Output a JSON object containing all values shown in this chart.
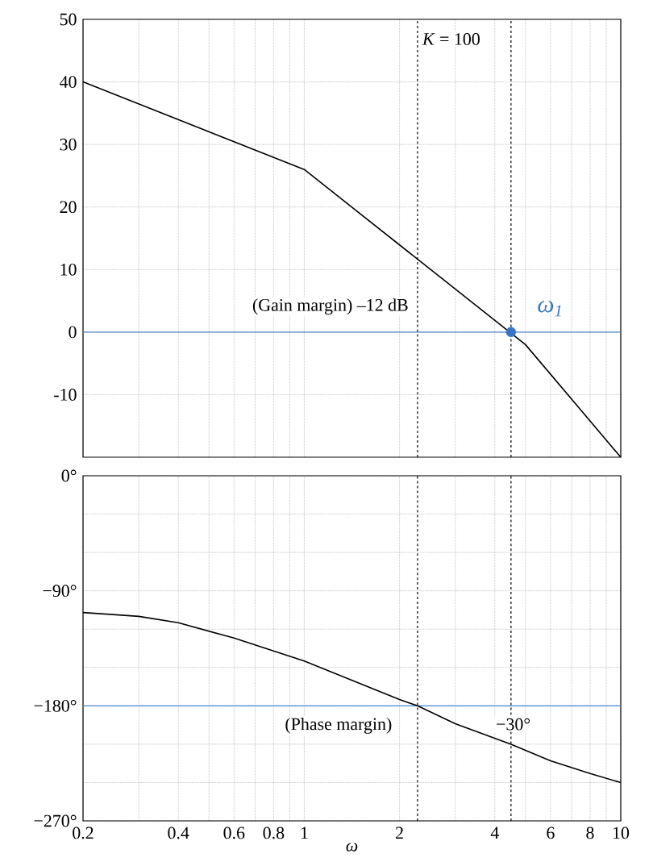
{
  "chart_data": [
    {
      "type": "line",
      "annotations": [
        "*K* = 100",
        "(Gain margin) –12 dB",
        {
          "text": "ω$_{1}$",
          "x": 4.5,
          "y": 0
        }
      ],
      "series": [
        {
          "x": [
            0.2,
            1,
            5,
            10
          ],
          "values": [
            40,
            26,
            -2,
            -20
          ],
          "color": "#000000"
        },
        {
          "type": "scatter",
          "x": [
            4.5
          ],
          "values": [
            0
          ],
          "color": "#3a74c4"
        }
      ],
      "xlim": [
        0.2,
        10
      ],
      "ylim": [
        -20,
        50
      ],
      "xticks": [
        0.2,
        {
          "value": 0.3,
          "label": null
        },
        0.4,
        {
          "value": 0.5,
          "label": null
        },
        0.6,
        {
          "value": 0.7,
          "label": null
        },
        0.8,
        {
          "value": 0.9,
          "label": null
        },
        1,
        2,
        {
          "value": 3,
          "label": null
        },
        4,
        {
          "value": 5,
          "label": null
        },
        6,
        {
          "value": 7,
          "label": null
        },
        8,
        {
          "value": 9,
          "label": null
        },
        10
      ],
      "yticks": [
        -10,
        0,
        10,
        20,
        30,
        40,
        50
      ],
      "log": "x",
      "grid": true,
      "tick_labels": "y",
      "ref_lines": [
        {
          "axis": "y",
          "value": 0,
          "color": "#4a86c8"
        },
        {
          "axis": "x",
          "value": 2.28,
          "line_style": "dashed",
          "color": "#000000"
        },
        {
          "axis": "x",
          "value": 4.5,
          "line_style": "dashed",
          "color": "#000000"
        }
      ]
    },
    {
      "type": "line",
      "xlabel": "ω",
      "annotations": [
        "(Phase margin)",
        "−30°"
      ],
      "series": [
        {
          "x": [
            0.2,
            0.3,
            0.4,
            0.6,
            1,
            2,
            2.28,
            3,
            4.5,
            6,
            8,
            10
          ],
          "values": [
            -107,
            -110,
            -115,
            -127,
            -145,
            -175,
            -180,
            -194,
            -210,
            -223,
            -233,
            -240
          ],
          "color": "#000000"
        }
      ],
      "xlim": [
        0.2,
        10
      ],
      "ylim": [
        -270,
        0
      ],
      "xticks": [
        0.2,
        {
          "value": 0.3,
          "label": null
        },
        0.4,
        {
          "value": 0.5,
          "label": null
        },
        0.6,
        {
          "value": 0.7,
          "label": null
        },
        0.8,
        {
          "value": 0.9,
          "label": null
        },
        1,
        2,
        {
          "value": 3,
          "label": null
        },
        4,
        {
          "value": 5,
          "label": null
        },
        6,
        {
          "value": 7,
          "label": null
        },
        8,
        {
          "value": 9,
          "label": null
        },
        10
      ],
      "yticks": [
        {
          "value": -270,
          "label": "−270°"
        },
        {
          "value": -240,
          "label": null
        },
        {
          "value": -210,
          "label": null
        },
        {
          "value": -180,
          "label": "−180°"
        },
        {
          "value": -150,
          "label": null
        },
        {
          "value": -120,
          "label": null
        },
        {
          "value": -90,
          "label": "−90°"
        },
        {
          "value": -60,
          "label": null
        },
        {
          "value": -30,
          "label": null
        },
        {
          "value": 0,
          "label": "0°"
        }
      ],
      "log": "x",
      "grid": true,
      "ref_lines": [
        {
          "axis": "y",
          "value": -180,
          "color": "#4a86c8"
        },
        {
          "axis": "x",
          "value": 2.28,
          "line_style": "dashed",
          "color": "#000000"
        },
        {
          "axis": "x",
          "value": 4.5,
          "line_style": "dashed",
          "color": "#000000"
        }
      ]
    }
  ]
}
